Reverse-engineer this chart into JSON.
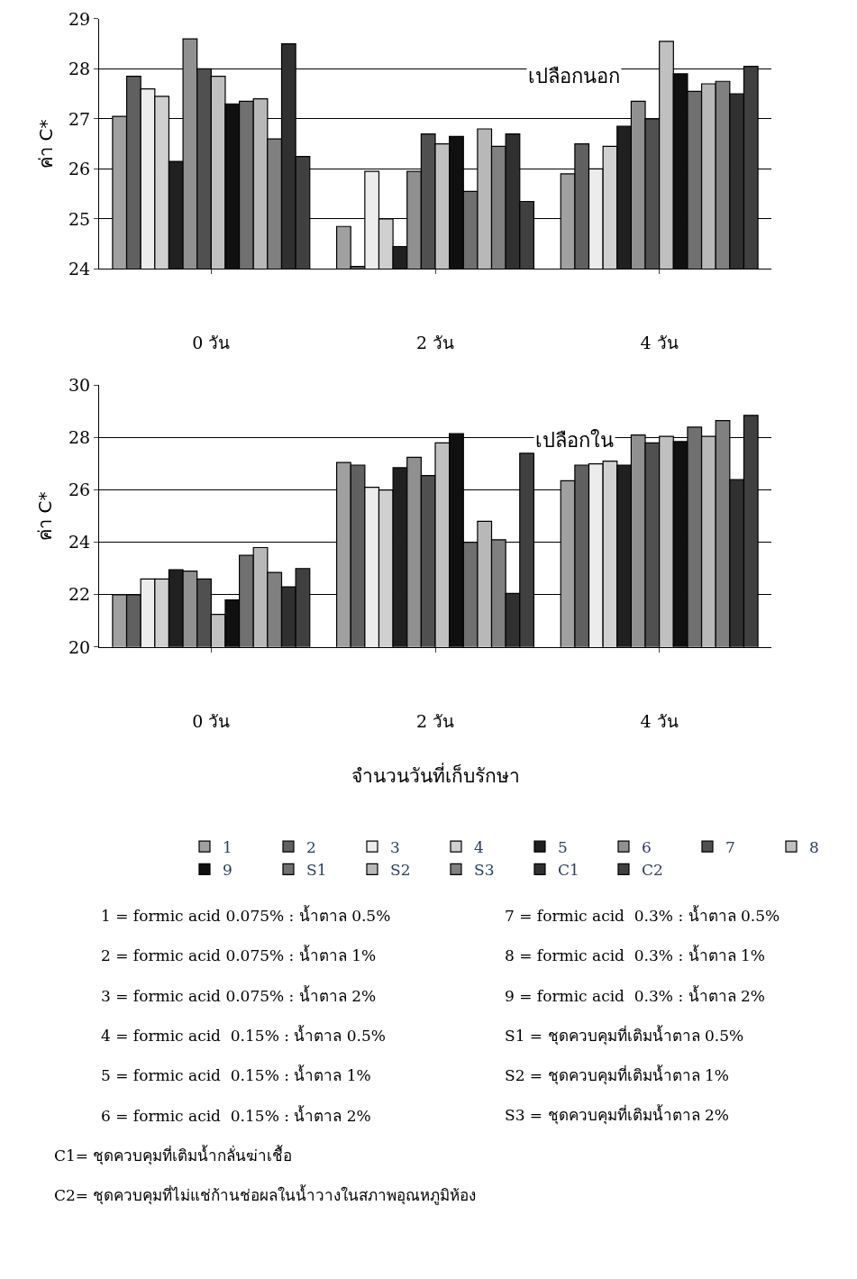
{
  "chart_data": [
    {
      "type": "bar",
      "categories": [
        "0 วัน",
        "2 วัน",
        "4 วัน"
      ],
      "ylabel": "ค่า C*",
      "ylim": [
        24,
        29
      ],
      "yticks": [
        24,
        25,
        26,
        27,
        28,
        29
      ],
      "grid": "y",
      "legend": "bottom",
      "annotations": [
        "เปลือกนอก"
      ],
      "series": [
        {
          "name": "1",
          "color": "#a0a0a0",
          "values": [
            27.05,
            24.85,
            25.9
          ]
        },
        {
          "name": "2",
          "color": "#606060",
          "values": [
            27.85,
            24.05,
            26.5
          ]
        },
        {
          "name": "3",
          "color": "#ececec",
          "values": [
            27.6,
            25.95,
            26.0
          ]
        },
        {
          "name": "4",
          "color": "#d0d0d0",
          "values": [
            27.45,
            25.0,
            26.45
          ]
        },
        {
          "name": "5",
          "color": "#202020",
          "values": [
            26.15,
            24.45,
            26.85
          ]
        },
        {
          "name": "6",
          "color": "#909090",
          "values": [
            28.6,
            25.95,
            27.35
          ]
        },
        {
          "name": "7",
          "color": "#505050",
          "values": [
            28.0,
            26.7,
            27.0
          ]
        },
        {
          "name": "8",
          "color": "#c0c0c0",
          "values": [
            27.85,
            26.5,
            28.55
          ]
        },
        {
          "name": "9",
          "color": "#101010",
          "values": [
            27.3,
            26.65,
            27.9
          ]
        },
        {
          "name": "S1",
          "color": "#707070",
          "values": [
            27.35,
            25.55,
            27.55
          ]
        },
        {
          "name": "S2",
          "color": "#b8b8b8",
          "values": [
            27.4,
            26.8,
            27.7
          ]
        },
        {
          "name": "S3",
          "color": "#808080",
          "values": [
            26.6,
            26.45,
            27.75
          ]
        },
        {
          "name": "C1",
          "color": "#303030",
          "values": [
            28.5,
            26.7,
            27.5
          ]
        },
        {
          "name": "C2",
          "color": "#404040",
          "values": [
            26.25,
            25.35,
            28.05
          ]
        }
      ]
    },
    {
      "type": "bar",
      "categories": [
        "0 วัน",
        "2 วัน",
        "4 วัน"
      ],
      "xlabel": "จำนวนวันที่เก็บรักษา",
      "ylabel": "ค่า C*",
      "ylim": [
        20,
        30
      ],
      "yticks": [
        20,
        22,
        24,
        26,
        28,
        30
      ],
      "grid": "y",
      "annotations": [
        "เปลือกใน",
        "1 = formic acid 0.075% : น้ำตาล 0.5%",
        "2 = formic acid 0.075% : น้ำตาล 1%",
        "3 = formic acid 0.075% : น้ำตาล 2%",
        "4 = formic acid  0.15% : น้ำตาล 0.5%",
        "5 = formic acid  0.15% : น้ำตาล 1%",
        "6 = formic acid  0.15% : น้ำตาล 2%",
        "7 = formic acid  0.3% : น้ำตาล 0.5%",
        "8 = formic acid  0.3% : น้ำตาล 1%",
        "9 = formic acid  0.3% : น้ำตาล 2%",
        "S1 = ชุดควบคุมที่เติมน้ำตาล 0.5%",
        "S2 = ชุดควบคุมที่เติมน้ำตาล 1%",
        "S3 = ชุดควบคุมที่เติมน้ำตาล 2%",
        "C1= ชุดควบคุมที่เติมน้ำกลั่นฆ่าเชื้อ",
        "C2= ชุดควบคุมที่ไม่แช่ก้านช่อผลในน้ำวางในสภาพอุณหภูมิห้อง"
      ],
      "series": [
        {
          "color": "#a0a0a0",
          "values": [
            22.0,
            27.05,
            26.35
          ]
        },
        {
          "color": "#606060",
          "values": [
            22.0,
            26.95,
            26.95
          ]
        },
        {
          "color": "#ececec",
          "values": [
            22.6,
            26.1,
            27.0
          ]
        },
        {
          "color": "#d0d0d0",
          "values": [
            22.6,
            26.0,
            27.1
          ]
        },
        {
          "color": "#202020",
          "values": [
            22.95,
            26.85,
            26.95
          ]
        },
        {
          "color": "#909090",
          "values": [
            22.9,
            27.25,
            28.1
          ]
        },
        {
          "color": "#505050",
          "values": [
            22.6,
            26.55,
            27.8
          ]
        },
        {
          "color": "#c0c0c0",
          "values": [
            21.25,
            27.8,
            28.05
          ]
        },
        {
          "color": "#101010",
          "values": [
            21.8,
            28.15,
            27.85
          ]
        },
        {
          "color": "#707070",
          "values": [
            23.5,
            24.0,
            28.4
          ]
        },
        {
          "color": "#b8b8b8",
          "values": [
            23.8,
            24.8,
            28.05
          ]
        },
        {
          "color": "#808080",
          "values": [
            22.85,
            24.1,
            28.65
          ]
        },
        {
          "color": "#303030",
          "values": [
            22.3,
            22.05,
            26.4
          ]
        },
        {
          "color": "#404040",
          "values": [
            23.0,
            27.4,
            28.85
          ]
        }
      ]
    }
  ]
}
